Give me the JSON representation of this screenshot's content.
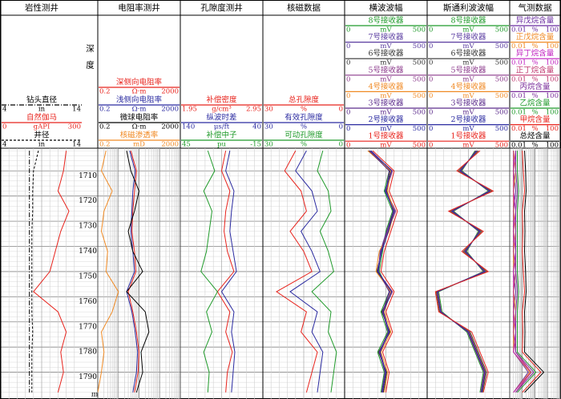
{
  "chart_data": {
    "type": "well_log",
    "depth_label": "深度",
    "depth_unit": "m",
    "ylim": [
      1701,
      1800
    ],
    "yticks": [
      1710,
      1720,
      1730,
      1740,
      1750,
      1760,
      1770,
      1780,
      1790
    ],
    "depth": [
      1702,
      1710,
      1718,
      1726,
      1734,
      1742,
      1750,
      1758,
      1766,
      1774,
      1782,
      1790,
      1798
    ],
    "tracks": [
      {
        "title": "岩性测井",
        "log_scale": false,
        "curves": [
          {
            "name": "钻头直径",
            "unit": "in",
            "xlim": [
              4,
              14
            ],
            "color": "#000000",
            "style": "dash-dot",
            "values": [
              7.5,
              7.5,
              7.5,
              7.5,
              7.5,
              7.5,
              7.5,
              7.5,
              7.5,
              7.5,
              7.5,
              7.5,
              7.5
            ]
          },
          {
            "name": "自然伽马",
            "unit": "gAPI",
            "xlim": [
              0,
              300
            ],
            "color": "#e8231c",
            "style": "solid",
            "values": [
              240,
              230,
              210,
              250,
              220,
              200,
              180,
              120,
              210,
              240,
              220,
              230,
              210
            ]
          },
          {
            "name": "井径",
            "unit": "in",
            "xlim": [
              4,
              14
            ],
            "color": "#000000",
            "style": "dashed",
            "values": [
              8.6,
              8.0,
              7.9,
              7.9,
              7.8,
              7.8,
              7.8,
              7.8,
              7.8,
              7.9,
              7.8,
              7.8,
              7.8
            ]
          }
        ]
      },
      {
        "title": "电阻率测井",
        "log_scale": true,
        "curves": [
          {
            "name": "深侧向电阻率",
            "unit": "Ω·m",
            "xlim": [
              0.2,
              2000
            ],
            "color": "#e8231c",
            "style": "solid",
            "values": [
              8,
              15,
              12,
              10,
              9,
              12,
              14,
              6,
              10,
              15,
              20,
              18,
              12
            ]
          },
          {
            "name": "浅侧向电阻率",
            "unit": "Ω·m",
            "xlim": [
              0.2,
              2000
            ],
            "color": "#2a2aa0",
            "style": "solid",
            "values": [
              7,
              13,
              10,
              9,
              8,
              10,
              12,
              5,
              9,
              13,
              17,
              15,
              10
            ]
          },
          {
            "name": "微球电阻率",
            "unit": "Ω·m",
            "xlim": [
              0.2,
              2000
            ],
            "color": "#000000",
            "style": "solid",
            "values": [
              5,
              8,
              20,
              12,
              6,
              10,
              30,
              5,
              40,
              60,
              25,
              30,
              15
            ]
          },
          {
            "name": "核磁渗透率",
            "unit": "mD",
            "xlim": [
              0.2,
              2000
            ],
            "color": "#f08a24",
            "style": "solid",
            "values": [
              0.5,
              0.3,
              1,
              0.4,
              0.3,
              0.6,
              0.5,
              2,
              1,
              0.3,
              0.4,
              0.3,
              0.2
            ]
          }
        ]
      },
      {
        "title": "孔隙度测井",
        "log_scale": false,
        "curves": [
          {
            "name": "补偿密度",
            "unit": "g/cm³",
            "xlim": [
              1.95,
              2.95
            ],
            "color": "#e8231c",
            "style": "solid",
            "values": [
              2.5,
              2.45,
              2.55,
              2.5,
              2.48,
              2.52,
              2.6,
              2.4,
              2.55,
              2.5,
              2.58,
              2.52,
              2.5
            ]
          },
          {
            "name": "纵波时差",
            "unit": "μs/ft",
            "xlim": [
              140,
              40
            ],
            "color": "#2a2aa0",
            "style": "solid",
            "values": [
              80,
              85,
              75,
              78,
              80,
              76,
              72,
              90,
              75,
              78,
              74,
              76,
              78
            ]
          },
          {
            "name": "补偿中子",
            "unit": "pu",
            "xlim": [
              45,
              -15
            ],
            "color": "#1f9a2a",
            "style": "solid",
            "values": [
              25,
              20,
              28,
              22,
              24,
              26,
              30,
              18,
              26,
              22,
              28,
              24,
              25
            ]
          }
        ]
      },
      {
        "title": "核磁数据",
        "log_scale": false,
        "curves": [
          {
            "name": "总孔隙度",
            "unit": "%",
            "xlim": [
              30,
              0
            ],
            "color": "#e8231c",
            "style": "solid",
            "values": [
              18,
              22,
              16,
              14,
              20,
              15,
              12,
              25,
              14,
              16,
              10,
              12,
              14
            ]
          },
          {
            "name": "有效孔隙度",
            "unit": "%",
            "xlim": [
              30,
              0
            ],
            "color": "#2a2aa0",
            "style": "solid",
            "values": [
              14,
              18,
              12,
              10,
              16,
              12,
              9,
              20,
              10,
              12,
              8,
              9,
              10
            ]
          },
          {
            "name": "可动孔隙度",
            "unit": "%",
            "xlim": [
              30,
              0
            ],
            "color": "#1f9a2a",
            "style": "solid",
            "values": [
              8,
              10,
              6,
              5,
              9,
              6,
              4,
              12,
              5,
              6,
              3,
              4,
              5
            ]
          }
        ]
      },
      {
        "title": "横波波幅",
        "log_scale": false,
        "curves": [
          {
            "name": "8号接收器",
            "unit": "mV",
            "xlim": [
              0,
              500
            ],
            "color": "#1f9a2a",
            "style": "solid",
            "values": [
              160,
              270,
              240,
              290,
              250,
              230,
              210,
              270,
              220,
              260,
              200,
              240,
              220
            ]
          },
          {
            "name": "7号接收器",
            "unit": "mV",
            "xlim": [
              0,
              500
            ],
            "color": "#5a3ca0",
            "style": "solid",
            "values": [
              155,
              285,
              245,
              305,
              255,
              215,
              205,
              275,
              235,
              265,
              215,
              245,
              225
            ]
          },
          {
            "name": "6号接收器",
            "unit": "mV",
            "xlim": [
              0,
              500
            ],
            "color": "#333333",
            "style": "solid",
            "values": [
              145,
              275,
              255,
              295,
              265,
              225,
              195,
              285,
              225,
              275,
              205,
              255,
              235
            ]
          },
          {
            "name": "5号接收器",
            "unit": "mV",
            "xlim": [
              0,
              500
            ],
            "color": "#8b3a8b",
            "style": "solid",
            "values": [
              150,
              290,
              250,
              310,
              260,
              220,
              200,
              290,
              230,
              270,
              210,
              250,
              230
            ]
          },
          {
            "name": "4号接收器",
            "unit": "mV",
            "xlim": [
              0,
              500
            ],
            "color": "#f08a24",
            "style": "solid",
            "values": [
              140,
              280,
              260,
              300,
              270,
              210,
              190,
              280,
              240,
              280,
              220,
              260,
              240
            ]
          },
          {
            "name": "3号接收器",
            "unit": "mV",
            "xlim": [
              0,
              500
            ],
            "color": "#5c2c8c",
            "style": "solid",
            "values": [
              150,
              270,
              250,
              295,
              255,
              220,
              205,
              270,
              230,
              265,
              210,
              245,
              225
            ]
          },
          {
            "name": "2号接收器",
            "unit": "mV",
            "xlim": [
              0,
              500
            ],
            "color": "#2a2aa0",
            "style": "solid",
            "values": [
              160,
              285,
              245,
              300,
              265,
              225,
              200,
              285,
              235,
              270,
              215,
              250,
              230
            ]
          },
          {
            "name": "1号接收器",
            "unit": "mV",
            "xlim": [
              0,
              500
            ],
            "color": "#e8231c",
            "style": "solid",
            "values": [
              170,
              300,
              270,
              320,
              280,
              240,
              220,
              300,
              250,
              290,
              230,
              270,
              250
            ]
          }
        ]
      },
      {
        "title": "斯通利波波幅",
        "log_scale": false,
        "curves": [
          {
            "name": "8号接收器",
            "unit": "mV",
            "xlim": [
              0,
              500
            ],
            "color": "#1f9a2a",
            "style": "solid",
            "values": [
              290,
              210,
              370,
              160,
              310,
              240,
              340,
              70,
              90,
              240,
              290,
              340,
              320
            ]
          },
          {
            "name": "7号接收器",
            "unit": "mV",
            "xlim": [
              0,
              500
            ],
            "color": "#5a3ca0",
            "style": "solid",
            "values": [
              300,
              200,
              380,
              150,
              320,
              230,
              350,
              60,
              80,
              250,
              300,
              350,
              330
            ]
          },
          {
            "name": "6号接收器",
            "unit": "mV",
            "xlim": [
              0,
              500
            ],
            "color": "#333333",
            "style": "solid",
            "values": [
              310,
              190,
              390,
              140,
              330,
              220,
              360,
              55,
              75,
              260,
              310,
              360,
              335
            ]
          },
          {
            "name": "5号接收器",
            "unit": "mV",
            "xlim": [
              0,
              500
            ],
            "color": "#8b3a8b",
            "style": "solid",
            "values": [
              295,
              205,
              375,
              155,
              315,
              235,
              345,
              65,
              85,
              245,
              295,
              345,
              325
            ]
          },
          {
            "name": "4号接收器",
            "unit": "mV",
            "xlim": [
              0,
              500
            ],
            "color": "#f08a24",
            "style": "solid",
            "values": [
              305,
              195,
              385,
              145,
              325,
              225,
              355,
              58,
              78,
              255,
              305,
              355,
              332
            ]
          },
          {
            "name": "3号接收器",
            "unit": "mV",
            "xlim": [
              0,
              500
            ],
            "color": "#5c2c8c",
            "style": "solid",
            "values": [
              298,
              202,
              378,
              152,
              318,
              232,
              348,
              62,
              82,
              248,
              298,
              348,
              328
            ]
          },
          {
            "name": "2号接收器",
            "unit": "mV",
            "xlim": [
              0,
              500
            ],
            "color": "#2a2aa0",
            "style": "solid",
            "values": [
              302,
              198,
              382,
              148,
              322,
              228,
              352,
              60,
              80,
              252,
              302,
              352,
              331
            ]
          },
          {
            "name": "1号接收器",
            "unit": "mV",
            "xlim": [
              0,
              500
            ],
            "color": "#e8231c",
            "style": "solid",
            "values": [
              320,
              180,
              400,
              130,
              340,
              210,
              370,
              50,
              70,
              270,
              320,
              370,
              340
            ]
          }
        ]
      },
      {
        "title": "气测数据",
        "log_scale": true,
        "curves": [
          {
            "name": "异戊烷含量",
            "unit": "%",
            "xlim": [
              0.01,
              100
            ],
            "color": "#6a2ca0",
            "style": "solid",
            "values": [
              0.02,
              0.02,
              0.03,
              0.02,
              0.02,
              0.02,
              0.02,
              0.03,
              0.02,
              0.02,
              0.02,
              0.3,
              0.02
            ]
          },
          {
            "name": "正戊烷含量",
            "unit": "%",
            "xlim": [
              0.01,
              100
            ],
            "color": "#f08a24",
            "style": "solid",
            "values": [
              0.02,
              0.03,
              0.02,
              0.02,
              0.03,
              0.02,
              0.02,
              0.02,
              0.03,
              0.02,
              0.02,
              0.4,
              0.02
            ]
          },
          {
            "name": "异丁烷含量",
            "unit": "%",
            "xlim": [
              0.01,
              100
            ],
            "color": "#c020c0",
            "style": "solid",
            "values": [
              0.03,
              0.02,
              0.02,
              0.03,
              0.02,
              0.03,
              0.02,
              0.02,
              0.02,
              0.03,
              0.02,
              0.5,
              0.02
            ]
          },
          {
            "name": "正丁烷含量",
            "unit": "%",
            "xlim": [
              0.01,
              100
            ],
            "color": "#c03870",
            "style": "solid",
            "values": [
              0.02,
              0.02,
              0.02,
              0.02,
              0.02,
              0.02,
              0.03,
              0.02,
              0.02,
              0.02,
              0.03,
              0.5,
              0.03
            ]
          },
          {
            "name": "丙烷含量",
            "unit": "%",
            "xlim": [
              0.01,
              100
            ],
            "color": "#7a2c9a",
            "style": "solid",
            "values": [
              0.03,
              0.03,
              0.04,
              0.03,
              0.03,
              0.03,
              0.03,
              0.04,
              0.03,
              0.03,
              0.03,
              0.8,
              0.03
            ]
          },
          {
            "name": "乙烷含量",
            "unit": "%",
            "xlim": [
              0.01,
              100
            ],
            "color": "#1f9a2a",
            "style": "solid",
            "values": [
              0.04,
              0.04,
              0.05,
              0.04,
              0.04,
              0.04,
              0.04,
              0.05,
              0.04,
              0.04,
              0.04,
              1.2,
              0.04
            ]
          },
          {
            "name": "甲烷含量",
            "unit": "%",
            "xlim": [
              0.01,
              100
            ],
            "color": "#e8231c",
            "style": "solid",
            "values": [
              0.1,
              0.12,
              0.15,
              0.1,
              0.11,
              0.1,
              0.12,
              0.15,
              0.1,
              0.11,
              0.1,
              3,
              0.1
            ]
          },
          {
            "name": "总烃含量",
            "unit": "%",
            "xlim": [
              0.01,
              100
            ],
            "color": "#000000",
            "style": "solid",
            "values": [
              0.15,
              0.18,
              0.2,
              0.15,
              0.16,
              0.15,
              0.18,
              0.2,
              0.15,
              0.16,
              0.15,
              5,
              0.15
            ]
          }
        ]
      }
    ]
  }
}
